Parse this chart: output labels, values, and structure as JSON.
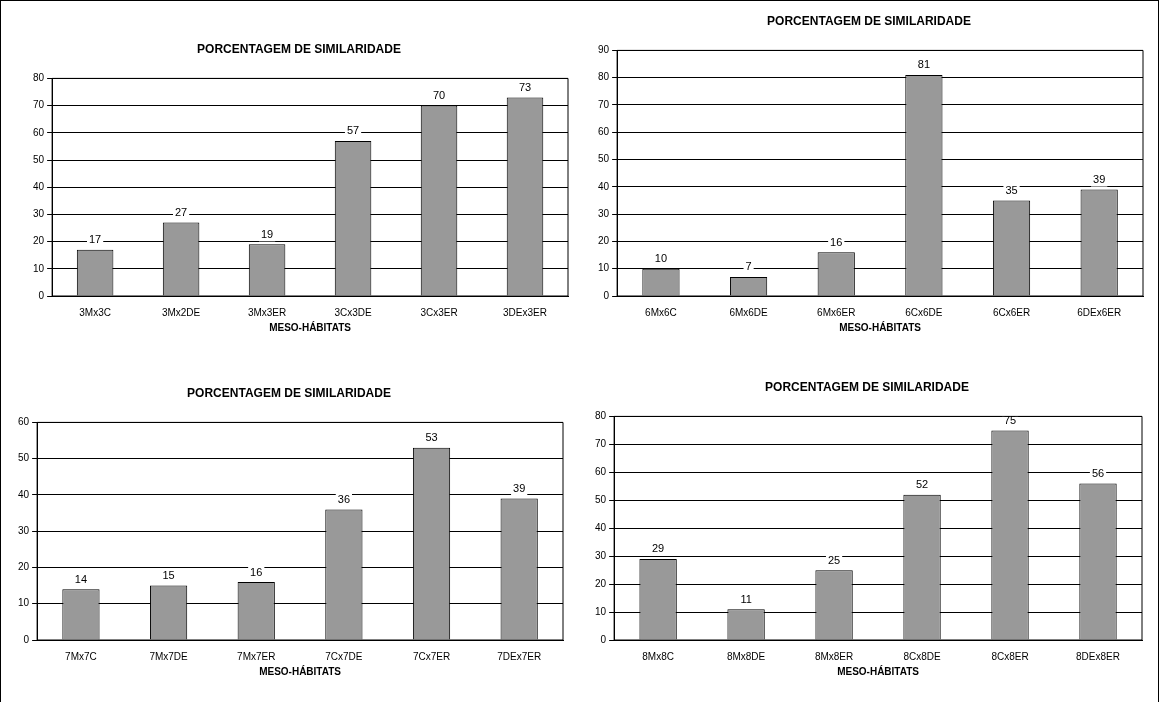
{
  "chart_data": [
    {
      "type": "bar",
      "title": "PORCENTAGEM DE SIMILARIDADE",
      "xlabel": "MESO-HÁBITATS",
      "categories": [
        "3Mx3C",
        "3Mx2DE",
        "3Mx3ER",
        "3Cx3DE",
        "3Cx3ER",
        "3DEx3ER"
      ],
      "values": [
        17,
        27,
        19,
        57,
        70,
        73
      ],
      "color": "#999999",
      "ylim": [
        0,
        80
      ],
      "yticks": [
        0,
        10,
        20,
        30,
        40,
        50,
        60,
        70,
        80
      ],
      "grid": "y",
      "legend": false,
      "data_labels": true
    },
    {
      "type": "bar",
      "title": "PORCENTAGEM DE SIMILARIDADE",
      "xlabel": "MESO-HÁBITATS",
      "categories": [
        "6Mx6C",
        "6Mx6DE",
        "6Mx6ER",
        "6Cx6DE",
        "6Cx6ER",
        "6DEx6ER"
      ],
      "values": [
        10,
        7,
        16,
        81,
        35,
        39
      ],
      "color": "#999999",
      "ylim": [
        0,
        90
      ],
      "yticks": [
        0,
        10,
        20,
        30,
        40,
        50,
        60,
        70,
        80,
        90
      ],
      "grid": "y",
      "legend": false,
      "data_labels": true
    },
    {
      "type": "bar",
      "title": "PORCENTAGEM DE SIMILARIDADE",
      "xlabel": "MESO-HÁBITATS",
      "categories": [
        "7Mx7C",
        "7Mx7DE",
        "7Mx7ER",
        "7Cx7DE",
        "7Cx7ER",
        "7DEx7ER"
      ],
      "values": [
        14,
        15,
        16,
        36,
        53,
        39
      ],
      "color": "#999999",
      "ylim": [
        0,
        60
      ],
      "yticks": [
        0,
        10,
        20,
        30,
        40,
        50,
        60
      ],
      "grid": "y",
      "legend": false,
      "data_labels": true
    },
    {
      "type": "bar",
      "title": "PORCENTAGEM DE SIMILARIDADE",
      "xlabel": "MESO-HÁBITATS",
      "categories": [
        "8Mx8C",
        "8Mx8DE",
        "8Mx8ER",
        "8Cx8DE",
        "8Cx8ER",
        "8DEx8ER"
      ],
      "values": [
        29,
        11,
        25,
        52,
        75,
        56
      ],
      "color": "#999999",
      "ylim": [
        0,
        80
      ],
      "yticks": [
        0,
        10,
        20,
        30,
        40,
        50,
        60,
        70,
        80
      ],
      "grid": "y",
      "legend": false,
      "data_labels": true
    }
  ]
}
